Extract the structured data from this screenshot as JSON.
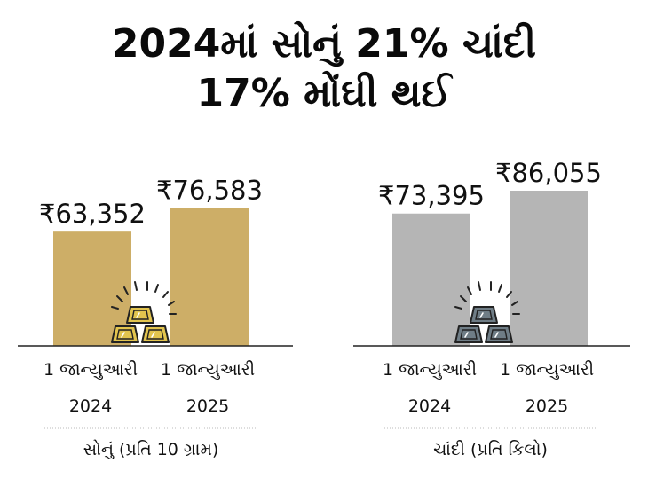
{
  "title": {
    "line1": "2024માં સોનું 21% ચાંદી",
    "line2": "17% મોંઘી થઈ"
  },
  "colors": {
    "gold": "#cdae67",
    "silver": "#b5b5b5",
    "gold_ingot": "#e2c44e",
    "silver_ingot": "#6f7d86"
  },
  "chart_data": [
    {
      "type": "bar",
      "group_label": "સોનું (પ્રતિ 10 ગ્રામ)",
      "categories": [
        {
          "line1": "1 જાન્યુઆરી",
          "line2": "2024"
        },
        {
          "line1": "1 જાન્યુઆરી",
          "line2": "2025"
        }
      ],
      "values": [
        63352,
        76583
      ],
      "value_labels": [
        "₹63,352",
        "₹76,583"
      ],
      "color": "#cdae67",
      "icon": "gold-bars-icon"
    },
    {
      "type": "bar",
      "group_label": "ચાંદી (પ્રતિ કિલો)",
      "categories": [
        {
          "line1": "1 જાન્યુઆરી",
          "line2": "2024"
        },
        {
          "line1": "1 જાન્યુઆરી",
          "line2": "2025"
        }
      ],
      "values": [
        73395,
        86055
      ],
      "value_labels": [
        "₹73,395",
        "₹86,055"
      ],
      "color": "#b5b5b5",
      "icon": "silver-bars-icon"
    }
  ]
}
